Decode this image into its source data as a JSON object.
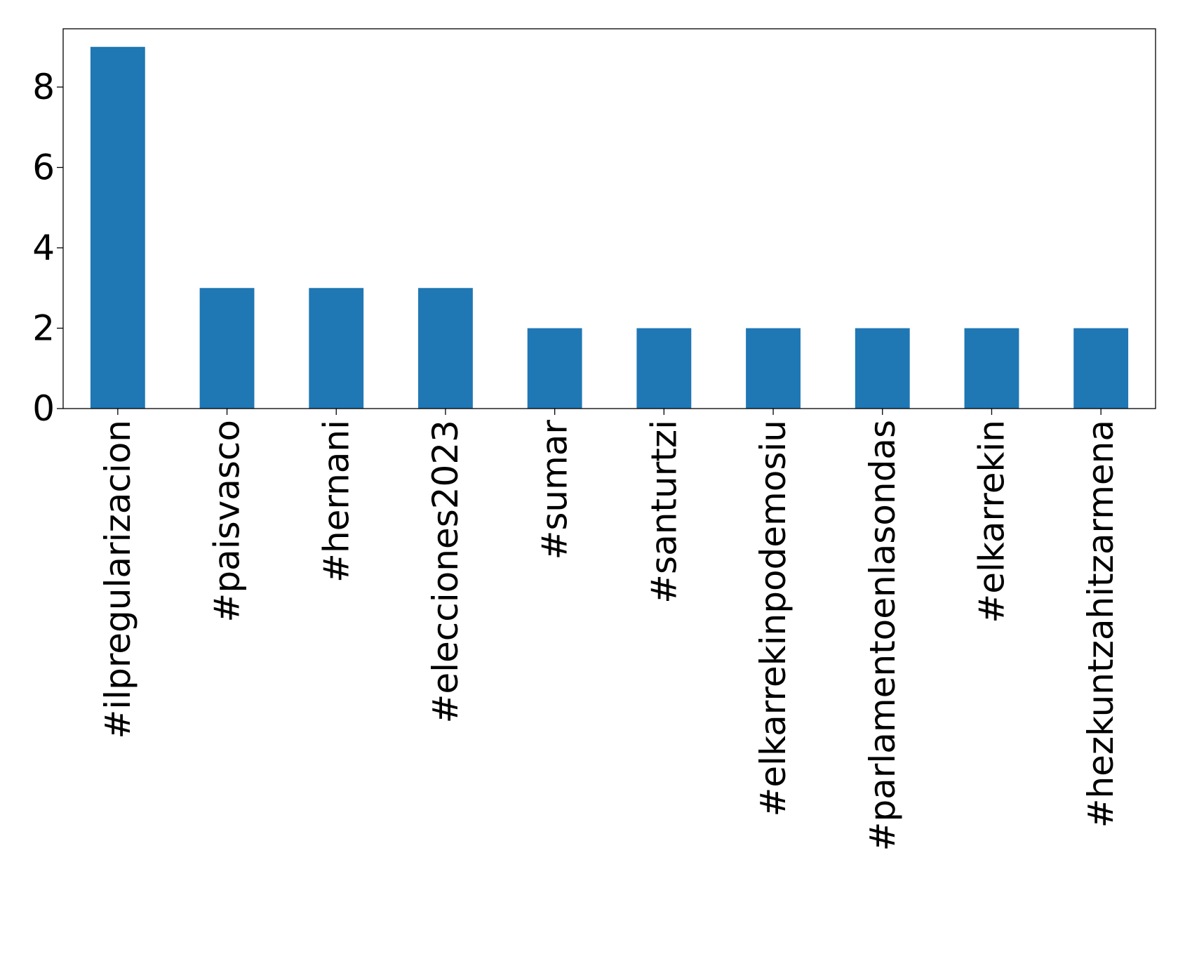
{
  "chart_data": {
    "type": "bar",
    "categories": [
      "#ilpregularizacion",
      "#paisvasco",
      "#hernani",
      "#elecciones2023",
      "#sumar",
      "#santurtzi",
      "#elkarrekinpodemosiu",
      "#parlamentoenlasondas",
      "#elkarrekin",
      "#hezkuntzahitzarmena"
    ],
    "values": [
      9,
      3,
      3,
      3,
      2,
      2,
      2,
      2,
      2,
      2
    ],
    "ylim": [
      0,
      9.45
    ],
    "yticks": [
      0,
      2,
      4,
      6,
      8
    ],
    "bar_color": "#1f77b4",
    "grid": false,
    "legend": false
  }
}
